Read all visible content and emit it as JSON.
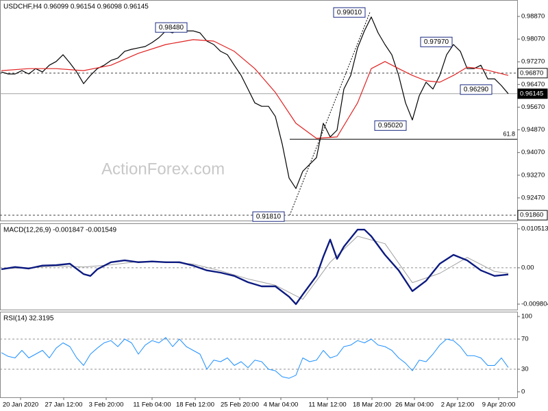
{
  "chart_data": [
    {
      "type": "line",
      "title": "USDCHF,H4  0.96099 0.96154 0.96098 0.96145",
      "watermark": "ActionForex.com",
      "xlim": [
        -0.2,
        75.3
      ],
      "ylim": [
        0.9167,
        0.9945
      ],
      "yticks": [
        {
          "value": 0.9887,
          "label": "0.98870"
        },
        {
          "value": 0.9807,
          "label": "0.98070"
        },
        {
          "value": 0.9727,
          "label": "0.97270"
        },
        {
          "value": 0.9647,
          "label": "0.96470"
        },
        {
          "value": 0.9567,
          "label": "0.95670"
        },
        {
          "value": 0.9487,
          "label": "0.94870"
        },
        {
          "value": 0.9407,
          "label": "0.94070"
        },
        {
          "value": 0.9327,
          "label": "0.93270"
        },
        {
          "value": 0.9247,
          "label": "0.92470"
        }
      ],
      "hlines": [
        {
          "value": 0.9687,
          "label": "0.96870",
          "style": "dashed",
          "color": "#404040"
        },
        {
          "value": 0.96145,
          "label": "0.96145",
          "style": "solid",
          "color": "#a0a0a0",
          "highlight": true
        },
        {
          "value": 0.9186,
          "label": "0.91860",
          "style": "dashed",
          "color": "#404040"
        }
      ],
      "fib": {
        "level": 0.9454,
        "ratio": 61.8
      },
      "annotations": [
        {
          "label": "0.98480",
          "x": 24.8,
          "y": 0.9848
        },
        {
          "label": "0.99010",
          "x": 50.8,
          "y": 0.9901
        },
        {
          "label": "0.97970",
          "x": 63.5,
          "y": 0.9797
        },
        {
          "label": "0.96290",
          "x": 69.3,
          "y": 0.9629
        },
        {
          "label": "0.95020",
          "x": 56.8,
          "y": 0.9502
        },
        {
          "label": "0.91810",
          "x": 39,
          "y": 0.9181
        }
      ],
      "series": [
        {
          "color": "#000000",
          "width": 1.2,
          "x": [
            0,
            1,
            2,
            3,
            4,
            5,
            6,
            7,
            8,
            9,
            10,
            11,
            12,
            13,
            14,
            15,
            16,
            17,
            18,
            19,
            20,
            21,
            22,
            23,
            24,
            25,
            26,
            27,
            28,
            29,
            30,
            31,
            32,
            33,
            34,
            35,
            36,
            37,
            38,
            39,
            40,
            41,
            42,
            43,
            44,
            45,
            46,
            47,
            48,
            49,
            50,
            51,
            52,
            53,
            54,
            55,
            56,
            57,
            58,
            59,
            60,
            61,
            62,
            63,
            64,
            65,
            66,
            67,
            68,
            69,
            70,
            71,
            72,
            73,
            74
          ],
          "values": [
            0.9691,
            0.9684,
            0.9684,
            0.9696,
            0.9684,
            0.9703,
            0.9691,
            0.9715,
            0.9728,
            0.9752,
            0.9723,
            0.9691,
            0.965,
            0.9679,
            0.9703,
            0.9715,
            0.9732,
            0.974,
            0.9764,
            0.9771,
            0.9776,
            0.9781,
            0.9795,
            0.9812,
            0.9836,
            0.9829,
            0.9844,
            0.9836,
            0.9836,
            0.9829,
            0.98,
            0.9788,
            0.9764,
            0.9752,
            0.9715,
            0.9679,
            0.9631,
            0.9582,
            0.957,
            0.957,
            0.9534,
            0.9437,
            0.9317,
            0.928,
            0.9341,
            0.9365,
            0.9389,
            0.951,
            0.9462,
            0.9486,
            0.9631,
            0.9679,
            0.9776,
            0.9836,
            0.9885,
            0.9829,
            0.9788,
            0.9752,
            0.9679,
            0.9582,
            0.9522,
            0.9607,
            0.9655,
            0.9631,
            0.9679,
            0.9752,
            0.9788,
            0.9764,
            0.9703,
            0.9703,
            0.9715,
            0.9667,
            0.9667,
            0.9643,
            0.96145
          ]
        },
        {
          "color": "#e02020",
          "width": 1.2,
          "x": [
            0,
            4,
            8,
            12,
            16,
            20,
            24,
            28,
            31,
            34,
            37,
            40,
            43,
            46,
            49,
            52,
            54,
            56,
            58,
            60,
            62,
            64,
            66,
            68,
            70,
            72,
            74
          ],
          "values": [
            0.9696,
            0.9703,
            0.9703,
            0.9696,
            0.9715,
            0.9757,
            0.9788,
            0.9805,
            0.98,
            0.9764,
            0.9703,
            0.9619,
            0.951,
            0.9457,
            0.9462,
            0.9582,
            0.9703,
            0.9728,
            0.9703,
            0.9679,
            0.966,
            0.9655,
            0.9679,
            0.9708,
            0.9703,
            0.9691,
            0.9679
          ]
        }
      ]
    },
    {
      "type": "line",
      "title": "MACD(12,26,9) -0.001847 -0.001549",
      "xlim": [
        -0.2,
        75.3
      ],
      "ylim": [
        -0.01128,
        0.01199
      ],
      "yticks": [
        0.010513,
        {
          "value": 0,
          "label": "0.00"
        },
        -0.009804
      ],
      "hlines": [
        {
          "value": 0,
          "style": "dashed",
          "color": "#909090"
        }
      ],
      "series": [
        {
          "color": "#a0a0a0",
          "width": 1,
          "x": [
            0,
            4,
            8,
            12,
            16,
            20,
            24,
            28,
            32,
            36,
            40,
            44,
            48,
            52,
            56,
            60,
            64,
            68,
            72,
            74
          ],
          "values": [
            -0.0003,
            0,
            0.0005,
            0.0002,
            0.0008,
            0.0017,
            0.0016,
            0.001,
            -0.0008,
            -0.003,
            -0.0047,
            -0.0085,
            0.0015,
            0.0085,
            0.0065,
            -0.004,
            -0.0015,
            0.0028,
            -0.001,
            -0.0015
          ]
        },
        {
          "color": "#0c1a80",
          "width": 2.4,
          "x": [
            0,
            2,
            4,
            6,
            8,
            10,
            12,
            13,
            14,
            16,
            18,
            20,
            22,
            24,
            26,
            28,
            30,
            32,
            34,
            36,
            38,
            40,
            42,
            43,
            44,
            46,
            47,
            48,
            49,
            50,
            52,
            53,
            54,
            56,
            58,
            60,
            62,
            64,
            66,
            68,
            70,
            72,
            74
          ],
          "values": [
            -0.0004,
            0.0002,
            -0.0002,
            0.0006,
            0.0007,
            0.0011,
            -0.0017,
            -0.0022,
            -0.0004,
            0.0015,
            0.002,
            0.0015,
            0.0017,
            0.0015,
            0.0015,
            0.0006,
            -0.0007,
            -0.0013,
            -0.0022,
            -0.0039,
            -0.005,
            -0.005,
            -0.0078,
            -0.0098,
            -0.0072,
            -0.0022,
            0.003,
            0.0076,
            0.0024,
            0.0057,
            0.0103,
            0.0103,
            0.0085,
            0.0035,
            -0.0007,
            -0.0063,
            -0.0035,
            0.0011,
            0.0035,
            0.002,
            -0.0007,
            -0.0022,
            -0.0018
          ]
        }
      ]
    },
    {
      "type": "line",
      "title": "RSI(14) 32.3195",
      "xlim": [
        -0.2,
        75.3
      ],
      "ylim": [
        -7.3,
        106.4
      ],
      "yticks": [
        100,
        70,
        30,
        0
      ],
      "hlines": [
        {
          "value": 70,
          "style": "dashed",
          "color": "#909090"
        },
        {
          "value": 30,
          "style": "dashed",
          "color": "#909090"
        }
      ],
      "xticks": [
        {
          "value": 2.8,
          "label": "20 Jan 2020"
        },
        {
          "value": 9.1,
          "label": "27 Jan 12:00"
        },
        {
          "value": 15.3,
          "label": "3 Feb 20:00"
        },
        {
          "value": 22,
          "label": "11 Feb 04:00"
        },
        {
          "value": 28.3,
          "label": "18 Feb 12:00"
        },
        {
          "value": 34.8,
          "label": "25 Feb 20:00"
        },
        {
          "value": 40.8,
          "label": "4 Mar 04:00"
        },
        {
          "value": 47.6,
          "label": "11 Mar 12:00"
        },
        {
          "value": 54.1,
          "label": "18 Mar 20:00"
        },
        {
          "value": 60.3,
          "label": "26 Mar 04:00"
        },
        {
          "value": 66.6,
          "label": "2 Apr 12:00"
        },
        {
          "value": 72.6,
          "label": "9 Apr 20:00"
        }
      ],
      "series": [
        {
          "color": "#1e90ff",
          "width": 1,
          "x": [
            0,
            1,
            2,
            3,
            4,
            5,
            6,
            7,
            8,
            9,
            10,
            11,
            12,
            13,
            14,
            15,
            16,
            17,
            18,
            19,
            20,
            21,
            22,
            23,
            24,
            25,
            26,
            27,
            28,
            29,
            30,
            31,
            32,
            33,
            34,
            35,
            36,
            37,
            38,
            39,
            40,
            41,
            42,
            43,
            44,
            45,
            46,
            47,
            48,
            49,
            50,
            51,
            52,
            53,
            54,
            55,
            56,
            57,
            58,
            59,
            60,
            61,
            62,
            63,
            64,
            65,
            66,
            67,
            68,
            69,
            70,
            71,
            72,
            73,
            74
          ],
          "values": [
            52,
            47,
            45,
            55,
            45,
            50,
            55,
            45,
            58,
            65,
            60,
            45,
            35,
            50,
            58,
            65,
            68,
            60,
            70,
            65,
            50,
            62,
            68,
            65,
            72,
            60,
            70,
            60,
            55,
            50,
            30,
            42,
            40,
            45,
            35,
            40,
            32,
            42,
            40,
            30,
            28,
            20,
            18,
            22,
            45,
            40,
            42,
            55,
            45,
            48,
            60,
            62,
            68,
            65,
            70,
            62,
            60,
            55,
            45,
            38,
            28,
            42,
            40,
            50,
            62,
            70,
            68,
            60,
            48,
            48,
            45,
            35,
            35,
            45,
            32.3195
          ]
        }
      ]
    }
  ]
}
